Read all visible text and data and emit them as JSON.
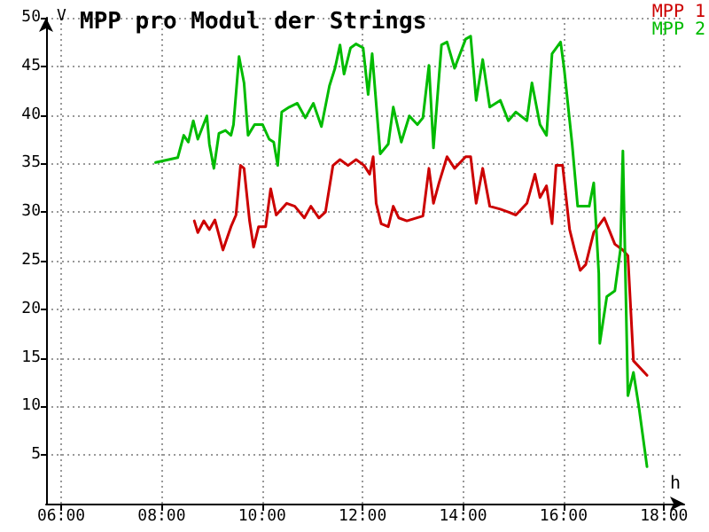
{
  "chart_data": {
    "type": "line",
    "title": "MPP pro Modul der Strings",
    "xlabel": "h",
    "ylabel": "V",
    "xlim": [
      5.7,
      18.4
    ],
    "xticks": [
      {
        "value": 6,
        "label": "06:00"
      },
      {
        "value": 8,
        "label": "08:00"
      },
      {
        "value": 10,
        "label": "10:00"
      },
      {
        "value": 12,
        "label": "12:00"
      },
      {
        "value": 14,
        "label": "14:00"
      },
      {
        "value": 16,
        "label": "16:00"
      },
      {
        "value": 18,
        "label": "18:00"
      }
    ],
    "ylim": [
      0,
      50
    ],
    "yticks": [
      5,
      10,
      15,
      20,
      25,
      30,
      35,
      40,
      45,
      50
    ],
    "grid": true,
    "legend": "top right",
    "marker": "none",
    "line_style": "solid",
    "series": [
      {
        "name": "MPP 1",
        "color": "#cc0000",
        "x": [
          8.65,
          8.72,
          8.84,
          8.95,
          9.06,
          9.22,
          9.38,
          9.48,
          9.57,
          9.64,
          9.75,
          9.83,
          9.93,
          10.07,
          10.17,
          10.28,
          10.49,
          10.65,
          10.84,
          10.97,
          11.13,
          11.26,
          11.41,
          11.55,
          11.71,
          11.87,
          12.03,
          12.14,
          12.21,
          12.27,
          12.37,
          12.51,
          12.61,
          12.72,
          12.88,
          13.2,
          13.32,
          13.41,
          13.52,
          13.68,
          13.83,
          14.05,
          14.15,
          14.26,
          14.39,
          14.53,
          14.74,
          14.9,
          15.05,
          15.27,
          15.43,
          15.53,
          15.66,
          15.77,
          15.85,
          15.98,
          16.12,
          16.22,
          16.33,
          16.44,
          16.6,
          16.81,
          17.02,
          17.18,
          17.28,
          17.39,
          17.66
        ],
        "values": [
          29.1,
          27.9,
          29.1,
          28.2,
          29.2,
          26.1,
          28.5,
          29.7,
          34.8,
          34.5,
          29.1,
          26.4,
          28.5,
          28.5,
          32.4,
          29.7,
          30.9,
          30.6,
          29.4,
          30.6,
          29.4,
          30.0,
          34.8,
          35.4,
          34.8,
          35.4,
          34.8,
          33.9,
          35.7,
          30.9,
          28.8,
          28.5,
          30.6,
          29.4,
          29.1,
          29.6,
          34.5,
          30.9,
          33.0,
          35.7,
          34.5,
          35.7,
          35.7,
          30.9,
          34.5,
          30.6,
          30.3,
          30.0,
          29.7,
          30.9,
          33.9,
          31.5,
          32.7,
          28.8,
          34.8,
          34.8,
          28.2,
          26.1,
          24.0,
          24.6,
          27.9,
          29.4,
          26.7,
          26.1,
          25.5,
          14.7,
          13.2
        ]
      },
      {
        "name": "MPP 2",
        "color": "#00bb00",
        "x": [
          7.88,
          8.32,
          8.44,
          8.53,
          8.63,
          8.72,
          8.9,
          8.95,
          9.04,
          9.14,
          9.27,
          9.38,
          9.43,
          9.54,
          9.64,
          9.72,
          9.85,
          10.01,
          10.14,
          10.23,
          10.31,
          10.39,
          10.54,
          10.7,
          10.86,
          11.02,
          11.18,
          11.34,
          11.45,
          11.55,
          11.63,
          11.76,
          11.87,
          12.01,
          12.11,
          12.19,
          12.35,
          12.51,
          12.61,
          12.77,
          12.93,
          13.09,
          13.2,
          13.32,
          13.41,
          13.57,
          13.68,
          13.83,
          14.05,
          14.15,
          14.26,
          14.39,
          14.53,
          14.74,
          14.9,
          15.05,
          15.27,
          15.37,
          15.53,
          15.66,
          15.77,
          15.94,
          16.01,
          16.17,
          16.28,
          16.51,
          16.6,
          16.7,
          16.72,
          16.86,
          17.02,
          17.13,
          17.18,
          17.23,
          17.28,
          17.39,
          17.5,
          17.66
        ],
        "values": [
          35.1,
          35.6,
          37.9,
          37.2,
          39.4,
          37.5,
          39.9,
          37.0,
          34.5,
          38.1,
          38.4,
          37.9,
          39.0,
          46.0,
          43.3,
          37.9,
          39.0,
          39.0,
          37.5,
          37.2,
          34.8,
          40.3,
          40.8,
          41.2,
          39.7,
          41.2,
          38.8,
          43.0,
          44.8,
          47.2,
          44.2,
          46.9,
          47.3,
          46.9,
          42.1,
          46.3,
          36.0,
          37.0,
          40.8,
          37.2,
          39.9,
          39.0,
          39.7,
          45.1,
          36.6,
          47.2,
          47.5,
          44.8,
          47.8,
          48.1,
          41.5,
          45.7,
          40.8,
          41.5,
          39.4,
          40.3,
          39.4,
          43.3,
          39.0,
          37.9,
          46.3,
          47.5,
          44.8,
          37.0,
          30.6,
          30.6,
          33.0,
          23.7,
          16.5,
          21.3,
          21.9,
          26.1,
          36.3,
          23.7,
          11.1,
          13.5,
          9.9,
          3.8
        ]
      }
    ]
  }
}
